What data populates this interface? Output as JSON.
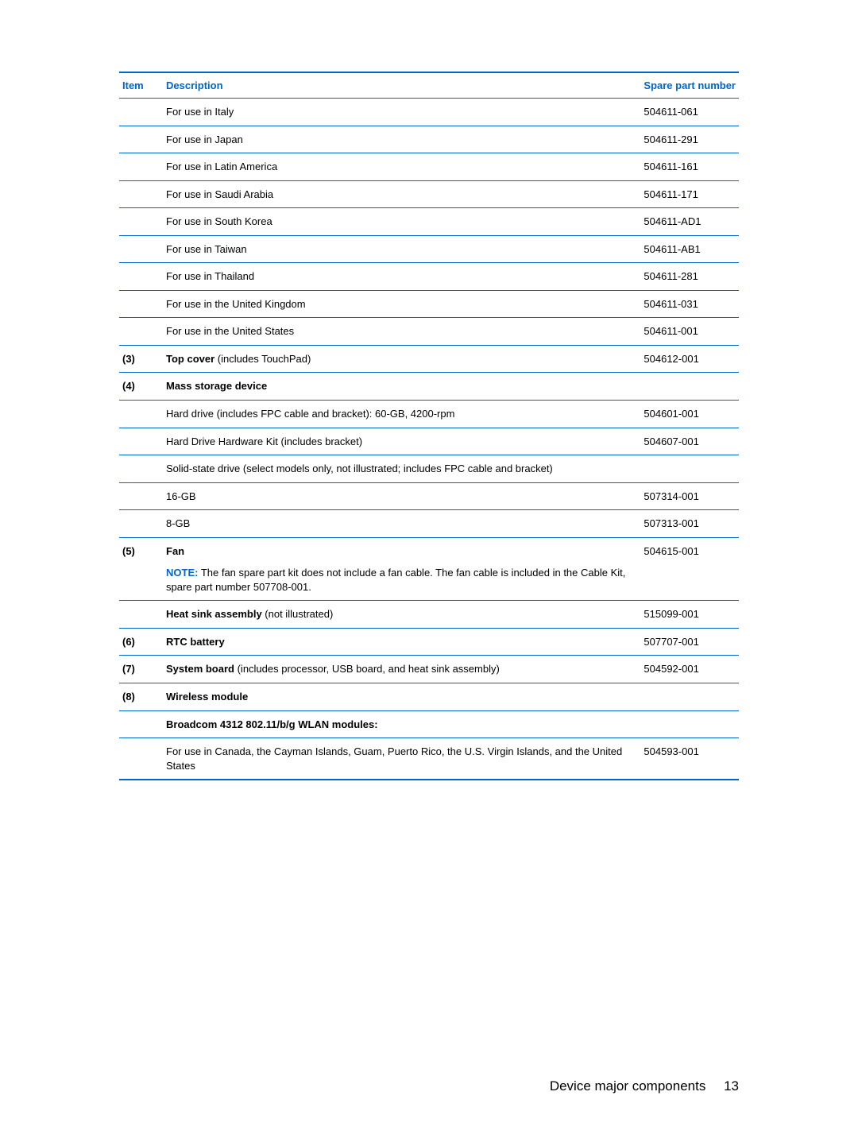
{
  "headers": {
    "item": "Item",
    "description": "Description",
    "spare": "Spare part number"
  },
  "noteLabel": "NOTE:",
  "rows": [
    {
      "item": "",
      "desc": "For use in Italy",
      "spare": "504611-061"
    },
    {
      "item": "",
      "desc": "For use in Japan",
      "spare": "504611-291"
    },
    {
      "item": "",
      "desc": "For use in Latin America",
      "spare": "504611-161"
    },
    {
      "item": "",
      "desc": "For use in Saudi Arabia",
      "spare": "504611-171"
    },
    {
      "item": "",
      "desc": "For use in South Korea",
      "spare": "504611-AD1"
    },
    {
      "item": "",
      "desc": "For use in Taiwan",
      "spare": "504611-AB1"
    },
    {
      "item": "",
      "desc": "For use in Thailand",
      "spare": "504611-281"
    },
    {
      "item": "",
      "desc": "For use in the United Kingdom",
      "spare": "504611-031"
    },
    {
      "item": "",
      "desc": "For use in the United States",
      "spare": "504611-001"
    },
    {
      "item": "(3)",
      "descBold": "Top cover",
      "descRest": " (includes TouchPad)",
      "spare": "504612-001"
    },
    {
      "item": "(4)",
      "descBold": "Mass storage device",
      "spare": ""
    },
    {
      "item": "",
      "desc": "Hard drive (includes FPC cable and bracket): 60-GB, 4200-rpm",
      "spare": "504601-001"
    },
    {
      "item": "",
      "desc": "Hard Drive Hardware Kit (includes bracket)",
      "spare": "504607-001"
    },
    {
      "item": "",
      "desc": "Solid-state drive (select models only, not illustrated; includes FPC cable and bracket)",
      "spare": ""
    },
    {
      "item": "",
      "desc": "16-GB",
      "spare": "507314-001"
    },
    {
      "item": "",
      "desc": "8-GB",
      "spare": "507313-001"
    },
    {
      "item": "(5)",
      "descBold": "Fan",
      "spare": "504615-001",
      "note": "The fan spare part kit does not include a fan cable. The fan cable is included in the Cable Kit, spare part number 507708-001."
    },
    {
      "item": "",
      "descBold": "Heat sink assembly",
      "descRest": " (not illustrated)",
      "spare": "515099-001"
    },
    {
      "item": "(6)",
      "descBold": "RTC battery",
      "spare": "507707-001"
    },
    {
      "item": "(7)",
      "descBold": "System board",
      "descRest": " (includes processor, USB board, and heat sink assembly)",
      "spare": "504592-001"
    },
    {
      "item": "(8)",
      "descBold": "Wireless module",
      "spare": ""
    },
    {
      "item": "",
      "descBold": "Broadcom 4312 802.11/b/g WLAN modules:",
      "spare": ""
    },
    {
      "item": "",
      "desc": "For use in Canada, the Cayman Islands, Guam, Puerto Rico, the U.S. Virgin Islands, and the United States",
      "spare": "504593-001",
      "last": true
    }
  ],
  "footer": {
    "section": "Device major components",
    "page": "13"
  }
}
